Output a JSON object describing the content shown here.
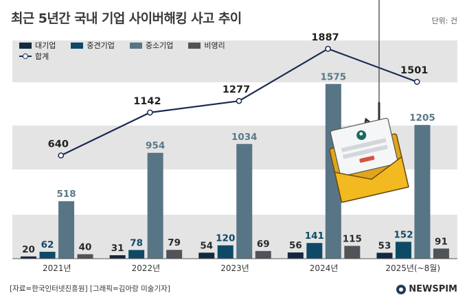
{
  "header": {
    "title": "최근 5년간 국내 기업 사이버해킹 사고 추이",
    "unit": "단위: 건"
  },
  "footer": {
    "source": "[자료=한국인터넷진흥원] [그래픽=김아랑 미술기자]",
    "brand": "NEWSPIM"
  },
  "colors": {
    "large": "#14293f",
    "mid": "#0e4a66",
    "small": "#587585",
    "nonprofit": "#505358",
    "total_line": "#1a2a52",
    "band": "#e4e4e4"
  },
  "chart_data": {
    "type": "bar",
    "categories": [
      "2021년",
      "2022년",
      "2023년",
      "2024년",
      "2025년(~8월)"
    ],
    "series": [
      {
        "name": "대기업",
        "values": [
          20,
          31,
          54,
          56,
          53
        ]
      },
      {
        "name": "중견기업",
        "values": [
          62,
          78,
          120,
          141,
          152
        ]
      },
      {
        "name": "중소기업",
        "values": [
          518,
          954,
          1034,
          1575,
          1205
        ]
      },
      {
        "name": "비영리",
        "values": [
          40,
          79,
          69,
          115,
          91
        ]
      }
    ],
    "line": {
      "name": "합계",
      "values": [
        640,
        1142,
        1277,
        1887,
        1501
      ]
    },
    "ylim": [
      0,
      1900
    ],
    "grid": false,
    "legend": "top-left"
  }
}
